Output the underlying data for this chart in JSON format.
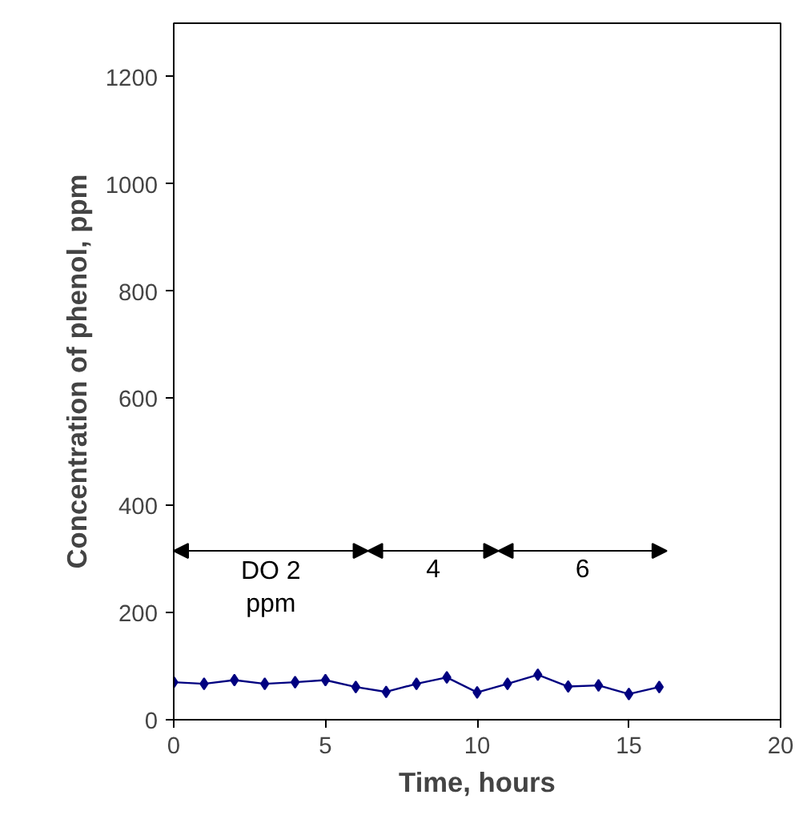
{
  "chart_data": {
    "type": "line",
    "xlabel": "Time, hours",
    "ylabel": "Concentration of phenol, ppm",
    "x": [
      0,
      1,
      2,
      3,
      4,
      5,
      6,
      7,
      8,
      9,
      10,
      11,
      12,
      13,
      14,
      15,
      16
    ],
    "series": [
      {
        "color": "#000080",
        "values": [
          70,
          67,
          74,
          67,
          70,
          74,
          61,
          52,
          67,
          79,
          51,
          67,
          84,
          62,
          64,
          48,
          61
        ]
      }
    ],
    "xlim": [
      0,
      20
    ],
    "ylim": [
      0,
      1300
    ],
    "xticks": [
      0,
      5,
      10,
      15,
      20
    ],
    "yticks": [
      0,
      200,
      400,
      600,
      800,
      1000,
      1200
    ],
    "marker": "diamond",
    "grid": false,
    "annotations": [
      "DO 2\nppm",
      "4",
      "6"
    ]
  }
}
